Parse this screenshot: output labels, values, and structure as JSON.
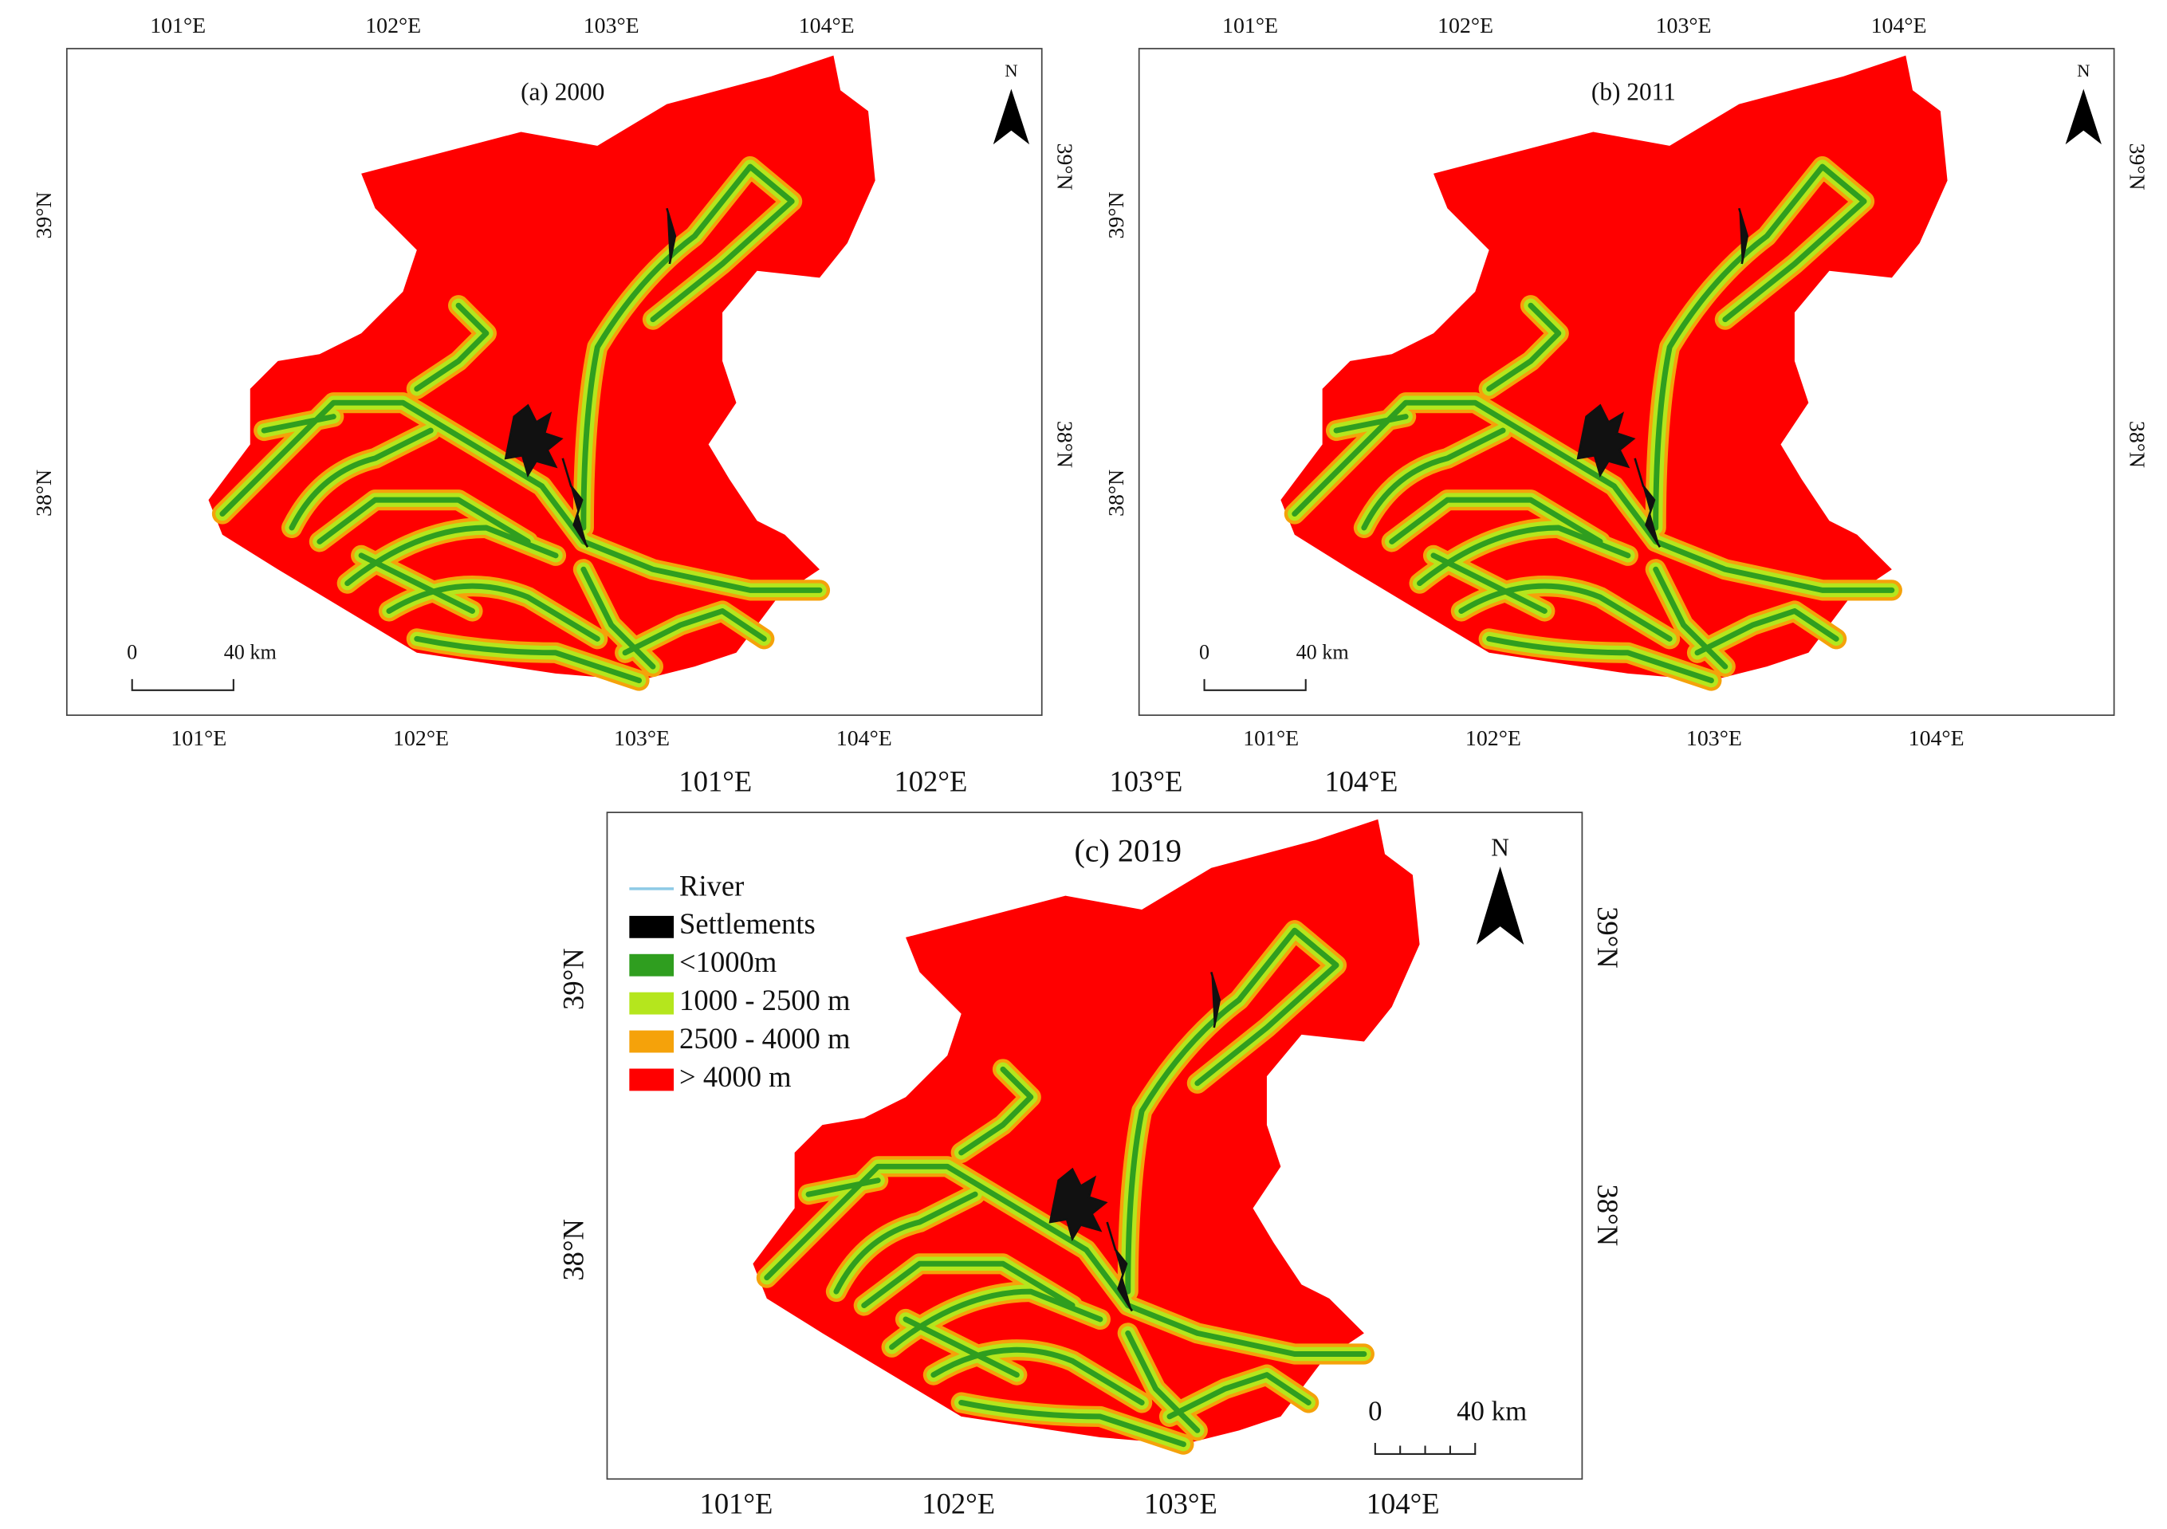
{
  "panels": [
    {
      "title": "(a) 2000",
      "top_ticks": [
        "101°E",
        "102°E",
        "103°E",
        "104°E"
      ],
      "bottom_ticks": [
        "101°E",
        "102°E",
        "103°E",
        "104°E"
      ],
      "left_ticks": [
        "39°N",
        "38°N"
      ],
      "right_ticks": [
        "39°N",
        "38°N"
      ],
      "scale_start": "0",
      "scale_end": "40 km",
      "north": "N"
    },
    {
      "title": "(b) 2011",
      "top_ticks": [
        "101°E",
        "102°E",
        "103°E",
        "104°E"
      ],
      "bottom_ticks": [
        "101°E",
        "102°E",
        "103°E",
        "104°E"
      ],
      "left_ticks": [
        "39°N",
        "38°N"
      ],
      "right_ticks": [
        "39°N",
        "38°N"
      ],
      "scale_start": "0",
      "scale_end": "40 km",
      "north": "N"
    },
    {
      "title": "(c) 2019",
      "top_ticks": [
        "101°E",
        "102°E",
        "103°E",
        "104°E"
      ],
      "bottom_ticks": [
        "101°E",
        "102°E",
        "103°E",
        "104°E"
      ],
      "left_ticks": [
        "39°N",
        "38°N"
      ],
      "right_ticks": [
        "39°N",
        "38°N"
      ],
      "scale_start": "0",
      "scale_end": "40 km",
      "north": "N"
    }
  ],
  "legend": [
    {
      "label": "River",
      "color": "#8ecae6"
    },
    {
      "label": "Settlements",
      "color": "#000000"
    },
    {
      "label": "<1000m",
      "color": "#2f9e1f"
    },
    {
      "label": "1000 - 2500 m",
      "color": "#b5e61d"
    },
    {
      "label": "2500 - 4000 m",
      "color": "#f5a20a"
    },
    {
      "label": "> 4000 m",
      "color": "#ff0000"
    }
  ]
}
